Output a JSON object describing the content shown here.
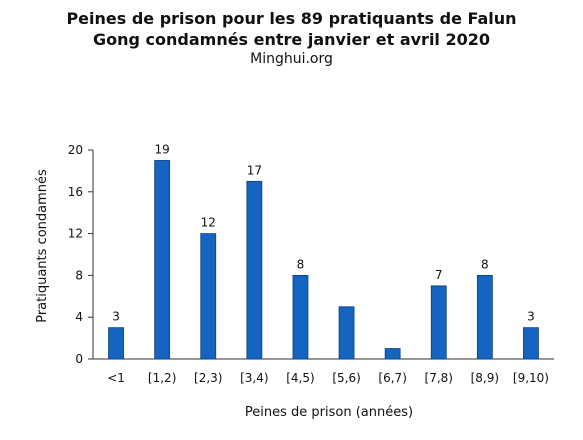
{
  "chart_data": {
    "type": "bar",
    "title_lines": [
      "Peines de prison pour les 89 pratiquants de Falun",
      "Gong condamnés entre janvier et avril 2020"
    ],
    "subtitle": "Minghui.org",
    "xlabel": "Peines de prison (années)",
    "ylabel": "Pratiquants condamnés",
    "categories": [
      "<1",
      "[1,2)",
      "[2,3)",
      "[3,4)",
      "[4,5)",
      "[5,6)",
      "[6,7)",
      "[7,8)",
      "[8,9)",
      "[9,10)"
    ],
    "values": [
      3,
      19,
      12,
      17,
      8,
      5,
      1,
      7,
      8,
      3
    ],
    "data_labels": [
      "3",
      "19",
      "12",
      "17",
      "8",
      "",
      "",
      "7",
      "8",
      "3"
    ],
    "ylim": [
      0,
      20
    ],
    "yticks": [
      0,
      4,
      8,
      12,
      16,
      20
    ],
    "grid": false,
    "bar_color": "#1565c0"
  }
}
